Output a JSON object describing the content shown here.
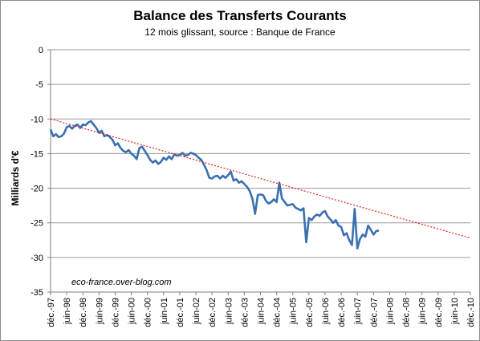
{
  "chart_data": {
    "type": "line",
    "title": "Balance des Transferts Courants",
    "subtitle": "12 mois glissant, source : Banque de France",
    "ylabel": "Milliards d'€",
    "xlabel": "",
    "ylim": [
      -35,
      0
    ],
    "yticks": [
      0,
      -5,
      -10,
      -15,
      -20,
      -25,
      -30,
      -35
    ],
    "grid": "horizontal",
    "legend": "none",
    "annotation": "eco-france.over-blog.com",
    "x_categories": [
      "déc.-97",
      "juin-98",
      "déc.-98",
      "juin-99",
      "déc.-99",
      "juin-00",
      "déc.-00",
      "juin-01",
      "déc.-01",
      "juin-02",
      "déc.-02",
      "juin-03",
      "déc.-03",
      "juin-04",
      "déc.-04",
      "juin-05",
      "déc.-05",
      "juin-06",
      "déc.-06",
      "juin-07",
      "déc.-07",
      "juin-08",
      "déc.-08",
      "juin-09",
      "déc.-09",
      "juin-10",
      "déc.-10"
    ],
    "x_tick_months": [
      0,
      6,
      12,
      18,
      24,
      30,
      36,
      42,
      48,
      54,
      60,
      66,
      72,
      78,
      84,
      90,
      96,
      102,
      108,
      114,
      120,
      126,
      132,
      138,
      144,
      150,
      156
    ],
    "colors": {
      "series": "#3a6fb0",
      "trend": "#e0201b",
      "grid": "#9a9a9a"
    },
    "series": [
      {
        "type": "line",
        "x_start": "déc.-97",
        "x_step": "1 mois",
        "values": [
          -11.5,
          -12.5,
          -12.2,
          -12.6,
          -12.5,
          -12.1,
          -11.2,
          -11.0,
          -11.4,
          -11.0,
          -10.8,
          -11.3,
          -10.8,
          -10.9,
          -10.5,
          -10.3,
          -10.8,
          -11.3,
          -12.0,
          -11.7,
          -12.5,
          -12.3,
          -12.6,
          -13.0,
          -13.8,
          -13.5,
          -14.2,
          -14.6,
          -14.8,
          -14.5,
          -15.0,
          -15.3,
          -15.8,
          -14.2,
          -14.0,
          -14.6,
          -15.2,
          -15.9,
          -16.3,
          -16.0,
          -16.5,
          -16.2,
          -15.6,
          -15.9,
          -15.4,
          -15.8,
          -15.1,
          -15.3,
          -15.2,
          -14.9,
          -15.3,
          -15.2,
          -14.9,
          -15.0,
          -15.2,
          -15.6,
          -15.9,
          -16.6,
          -17.4,
          -18.5,
          -18.6,
          -18.3,
          -18.2,
          -18.6,
          -18.2,
          -18.5,
          -18.1,
          -17.6,
          -18.9,
          -18.7,
          -19.2,
          -19.0,
          -19.4,
          -19.8,
          -20.4,
          -21.5,
          -23.7,
          -21.0,
          -20.9,
          -21.0,
          -21.8,
          -22.2,
          -22.0,
          -21.6,
          -22.0,
          -19.2,
          -21.5,
          -22.0,
          -22.5,
          -22.4,
          -22.3,
          -22.8,
          -23.0,
          -23.2,
          -22.9,
          -27.8,
          -24.3,
          -24.6,
          -24.1,
          -23.8,
          -24.0,
          -23.5,
          -23.3,
          -24.1,
          -24.5,
          -25.0,
          -24.6,
          -25.4,
          -25.6,
          -26.8,
          -26.5,
          -27.5,
          -28.2,
          -23.0,
          -28.7,
          -27.3,
          -26.7,
          -27.0,
          -25.4,
          -26.0,
          -26.7,
          -26.2,
          -26.1
        ]
      },
      {
        "type": "trend",
        "style": "dotted",
        "start": -10.0,
        "end": -27.2
      }
    ]
  }
}
